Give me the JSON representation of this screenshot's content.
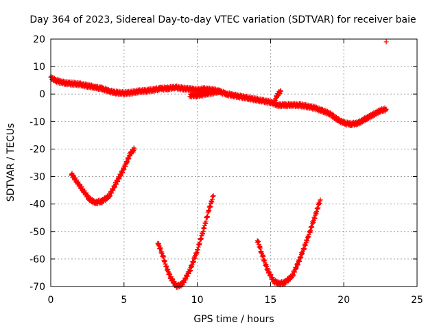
{
  "chart_data": {
    "type": "scatter",
    "title": "Day 364 of 2023, Sidereal Day-to-day VTEC variation (SDTVAR) for receiver baie",
    "xlabel": "GPS time / hours",
    "ylabel": "SDTVAR / TECUs",
    "xlim": [
      0,
      25
    ],
    "ylim": [
      -70,
      20
    ],
    "xticks": [
      0,
      5,
      10,
      15,
      20,
      25
    ],
    "yticks": [
      -70,
      -60,
      -50,
      -40,
      -30,
      -20,
      -10,
      0,
      10,
      20
    ],
    "xtick_labels": [
      "0",
      "5",
      "10",
      "15",
      "20",
      "25"
    ],
    "ytick_labels": [
      "-70",
      "-60",
      "-50",
      "-40",
      "-30",
      "-20",
      "-10",
      "0",
      "10",
      "20"
    ],
    "grid": true,
    "marker": "plus",
    "color": "#ff0000",
    "series": [
      {
        "name": "main-trace",
        "points": [
          [
            0.0,
            6
          ],
          [
            0.3,
            5
          ],
          [
            0.6,
            4.5
          ],
          [
            1.0,
            4
          ],
          [
            1.5,
            3.8
          ],
          [
            2.0,
            3.5
          ],
          [
            2.5,
            3
          ],
          [
            3.0,
            2.5
          ],
          [
            3.5,
            2
          ],
          [
            4.0,
            1
          ],
          [
            4.5,
            0.5
          ],
          [
            5.0,
            0.3
          ],
          [
            5.5,
            0.5
          ],
          [
            6.0,
            1
          ],
          [
            6.5,
            1.2
          ],
          [
            7.0,
            1.5
          ],
          [
            7.5,
            2
          ],
          [
            8.0,
            2
          ],
          [
            8.5,
            2.5
          ],
          [
            9.0,
            2
          ],
          [
            9.5,
            1.8
          ],
          [
            10.0,
            1.5
          ],
          [
            10.5,
            1.8
          ],
          [
            11.0,
            1.5
          ],
          [
            11.5,
            1
          ],
          [
            12.0,
            0
          ],
          [
            12.5,
            -0.5
          ],
          [
            13.0,
            -1
          ],
          [
            13.5,
            -1.5
          ],
          [
            14.0,
            -2
          ],
          [
            14.5,
            -2.5
          ],
          [
            15.0,
            -3
          ],
          [
            15.5,
            -4
          ],
          [
            16.0,
            -4
          ],
          [
            16.5,
            -4
          ],
          [
            17.0,
            -4
          ],
          [
            17.5,
            -4.5
          ],
          [
            18.0,
            -5
          ],
          [
            18.5,
            -6
          ],
          [
            19.0,
            -7
          ],
          [
            19.5,
            -9
          ],
          [
            20.0,
            -10.5
          ],
          [
            20.5,
            -11
          ],
          [
            21.0,
            -10.5
          ],
          [
            21.5,
            -9
          ],
          [
            22.0,
            -7.5
          ],
          [
            22.5,
            -6
          ],
          [
            22.9,
            -5.5
          ]
        ]
      },
      {
        "name": "late-morning-branch",
        "points": [
          [
            9.5,
            -0.5
          ],
          [
            10.0,
            -0.5
          ],
          [
            10.5,
            0
          ],
          [
            11.0,
            0.5
          ],
          [
            11.5,
            1
          ]
        ]
      },
      {
        "name": "afternoon-step",
        "points": [
          [
            15.3,
            -2
          ],
          [
            15.5,
            0
          ],
          [
            15.7,
            1
          ]
        ]
      },
      {
        "name": "arc-1",
        "points": [
          [
            1.4,
            -29
          ],
          [
            1.8,
            -32
          ],
          [
            2.2,
            -35
          ],
          [
            2.6,
            -38
          ],
          [
            3.0,
            -39.5
          ],
          [
            3.5,
            -39
          ],
          [
            4.0,
            -37
          ],
          [
            4.5,
            -32
          ],
          [
            5.0,
            -27
          ],
          [
            5.4,
            -22
          ],
          [
            5.7,
            -20
          ]
        ]
      },
      {
        "name": "arc-2",
        "points": [
          [
            7.3,
            -54
          ],
          [
            7.6,
            -58
          ],
          [
            7.9,
            -63
          ],
          [
            8.2,
            -67
          ],
          [
            8.6,
            -70
          ],
          [
            9.0,
            -69
          ],
          [
            9.5,
            -64
          ],
          [
            10.0,
            -57
          ],
          [
            10.5,
            -48
          ],
          [
            10.8,
            -42
          ],
          [
            11.1,
            -37
          ]
        ]
      },
      {
        "name": "arc-3",
        "points": [
          [
            14.1,
            -53
          ],
          [
            14.4,
            -58
          ],
          [
            14.8,
            -64
          ],
          [
            15.2,
            -68
          ],
          [
            15.6,
            -69
          ],
          [
            16.0,
            -68.5
          ],
          [
            16.5,
            -66
          ],
          [
            17.0,
            -60
          ],
          [
            17.5,
            -53
          ],
          [
            18.0,
            -45
          ],
          [
            18.4,
            -38.5
          ]
        ]
      },
      {
        "name": "outlier",
        "points": [
          [
            22.9,
            19
          ]
        ]
      }
    ]
  }
}
